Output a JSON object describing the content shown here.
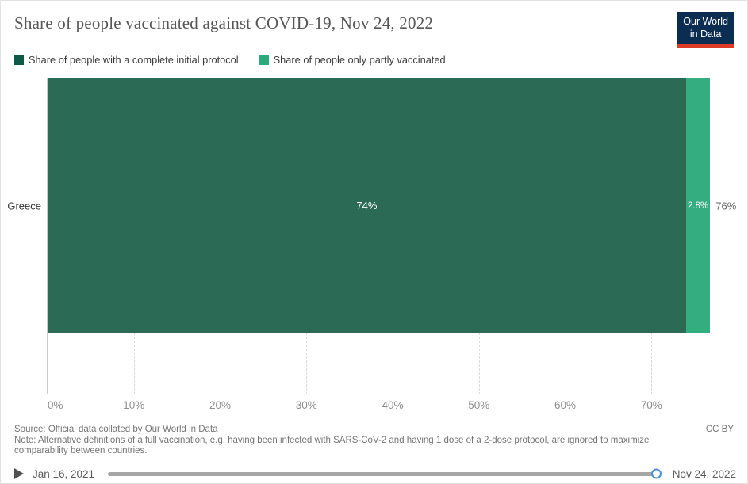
{
  "header": {
    "title": "Share of people vaccinated against COVID-19, Nov 24, 2022",
    "logo_line1": "Our World",
    "logo_line2": "in Data",
    "logo_bg": "#0c2d52",
    "logo_accent": "#dc3a26"
  },
  "legend": [
    {
      "label": "Share of people with a complete initial protocol",
      "color": "#0f5949"
    },
    {
      "label": "Share of people only partly vaccinated",
      "color": "#2aa97c"
    }
  ],
  "chart_data": {
    "type": "bar",
    "orientation": "horizontal",
    "title": "Share of people vaccinated against COVID-19, Nov 24, 2022",
    "categories": [
      "Greece"
    ],
    "series": [
      {
        "name": "Share of people with a complete initial protocol",
        "values": [
          74
        ],
        "color": "#2b6a54",
        "data_label": "74%"
      },
      {
        "name": "Share of people only partly vaccinated",
        "values": [
          2.8
        ],
        "color": "#34ae81",
        "data_label": "2.8%"
      }
    ],
    "total_labels": [
      "76%"
    ],
    "x_ticks": [
      {
        "value": 0,
        "label": "0%"
      },
      {
        "value": 10,
        "label": "10%"
      },
      {
        "value": 20,
        "label": "20%"
      },
      {
        "value": 30,
        "label": "30%"
      },
      {
        "value": 40,
        "label": "40%"
      },
      {
        "value": 50,
        "label": "50%"
      },
      {
        "value": 60,
        "label": "60%"
      },
      {
        "value": 70,
        "label": "70%"
      }
    ],
    "xlim": [
      0,
      76.5
    ],
    "grid": "dashed-vertical-below-bar",
    "legend_position": "top"
  },
  "footer": {
    "source": "Source: Official data collated by Our World in Data",
    "note": "Note: Alternative definitions of a full vaccination, e.g. having been infected with SARS-CoV-2 and having 1 dose of a 2-dose protocol, are ignored to maximize comparability between countries.",
    "license": "CC BY"
  },
  "timeline": {
    "start_label": "Jan 16, 2021",
    "end_label": "Nov 24, 2022",
    "handle_color": "#4891d4"
  }
}
